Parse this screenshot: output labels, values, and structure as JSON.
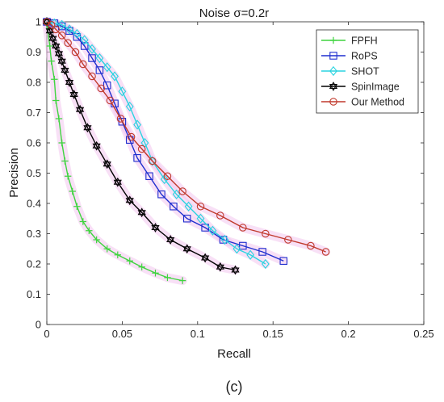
{
  "panel_label": "(c)",
  "colors": {
    "FPFH": "#3fd43f",
    "RoPS": "#1f2fcf",
    "SHOT": "#2ad4e0",
    "SpinImage": "#000000",
    "Our Method": "#c0392b",
    "band": "#f2c6ef"
  },
  "chart_data": {
    "type": "line",
    "title": "Noise σ=0.2r",
    "xlabel": "Recall",
    "ylabel": "Precision",
    "xlim": [
      0,
      0.25
    ],
    "ylim": [
      0,
      1
    ],
    "xticks": [
      0,
      0.05,
      0.1,
      0.15,
      0.2,
      0.25
    ],
    "xtick_labels": [
      "0",
      "0.05",
      "0.1",
      "0.15",
      "0.2",
      "0.25"
    ],
    "yticks": [
      0,
      0.1,
      0.2,
      0.3,
      0.4,
      0.5,
      0.6,
      0.7,
      0.8,
      0.9,
      1
    ],
    "ytick_labels": [
      "0",
      "0.1",
      "0.2",
      "0.3",
      "0.4",
      "0.5",
      "0.6",
      "0.7",
      "0.8",
      "0.9",
      "1"
    ],
    "grid": false,
    "legend_position": "top-right",
    "series": [
      {
        "name": "FPFH",
        "marker": "plus",
        "x": [
          0.0,
          0.002,
          0.003,
          0.005,
          0.006,
          0.008,
          0.01,
          0.012,
          0.014,
          0.017,
          0.02,
          0.024,
          0.028,
          0.033,
          0.04,
          0.047,
          0.055,
          0.063,
          0.072,
          0.08,
          0.09
        ],
        "y": [
          0.99,
          0.92,
          0.87,
          0.81,
          0.74,
          0.68,
          0.6,
          0.54,
          0.49,
          0.44,
          0.39,
          0.34,
          0.31,
          0.28,
          0.25,
          0.23,
          0.21,
          0.19,
          0.17,
          0.155,
          0.145
        ]
      },
      {
        "name": "RoPS",
        "marker": "square",
        "x": [
          0.0,
          0.005,
          0.01,
          0.015,
          0.02,
          0.025,
          0.03,
          0.035,
          0.04,
          0.045,
          0.05,
          0.055,
          0.06,
          0.068,
          0.076,
          0.084,
          0.093,
          0.105,
          0.117,
          0.13,
          0.143,
          0.157
        ],
        "y": [
          1.0,
          0.995,
          0.985,
          0.97,
          0.95,
          0.92,
          0.88,
          0.84,
          0.79,
          0.73,
          0.67,
          0.61,
          0.55,
          0.49,
          0.43,
          0.39,
          0.35,
          0.32,
          0.28,
          0.26,
          0.24,
          0.21
        ]
      },
      {
        "name": "SHOT",
        "marker": "diamond",
        "x": [
          0.0,
          0.005,
          0.01,
          0.015,
          0.02,
          0.025,
          0.03,
          0.035,
          0.04,
          0.045,
          0.05,
          0.055,
          0.06,
          0.065,
          0.07,
          0.078,
          0.086,
          0.094,
          0.102,
          0.11,
          0.118,
          0.126,
          0.135,
          0.145
        ],
        "y": [
          1.0,
          0.995,
          0.99,
          0.975,
          0.96,
          0.94,
          0.91,
          0.88,
          0.85,
          0.82,
          0.77,
          0.72,
          0.66,
          0.6,
          0.54,
          0.48,
          0.43,
          0.39,
          0.35,
          0.31,
          0.28,
          0.25,
          0.23,
          0.2
        ]
      },
      {
        "name": "SpinImage",
        "marker": "hexagram",
        "x": [
          0.0,
          0.002,
          0.004,
          0.006,
          0.008,
          0.01,
          0.012,
          0.015,
          0.018,
          0.022,
          0.027,
          0.033,
          0.04,
          0.047,
          0.055,
          0.063,
          0.072,
          0.082,
          0.093,
          0.105,
          0.115,
          0.125
        ],
        "y": [
          1.0,
          0.97,
          0.945,
          0.92,
          0.895,
          0.87,
          0.84,
          0.8,
          0.76,
          0.71,
          0.65,
          0.59,
          0.53,
          0.47,
          0.41,
          0.37,
          0.32,
          0.28,
          0.25,
          0.22,
          0.19,
          0.18
        ]
      },
      {
        "name": "Our Method",
        "marker": "circle",
        "x": [
          0.0,
          0.003,
          0.006,
          0.01,
          0.014,
          0.019,
          0.024,
          0.03,
          0.036,
          0.042,
          0.049,
          0.056,
          0.063,
          0.07,
          0.08,
          0.09,
          0.102,
          0.115,
          0.13,
          0.145,
          0.16,
          0.175,
          0.185
        ],
        "y": [
          1.0,
          0.99,
          0.975,
          0.955,
          0.93,
          0.9,
          0.86,
          0.82,
          0.78,
          0.74,
          0.68,
          0.62,
          0.58,
          0.54,
          0.49,
          0.44,
          0.39,
          0.36,
          0.32,
          0.3,
          0.28,
          0.26,
          0.24
        ]
      }
    ]
  }
}
